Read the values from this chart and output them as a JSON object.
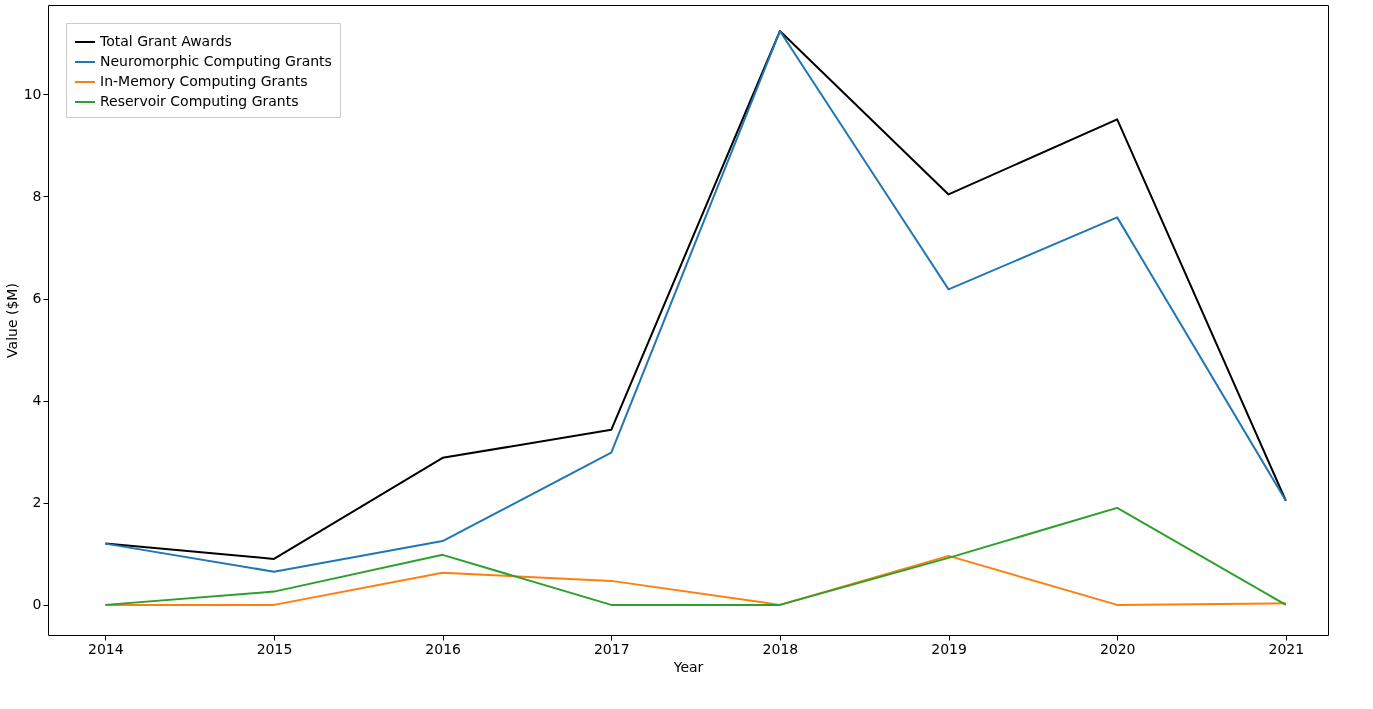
{
  "chart_data": {
    "type": "line",
    "xlabel": "Year",
    "ylabel": "Value ($M)",
    "x": [
      2014,
      2015,
      2016,
      2017,
      2018,
      2019,
      2020,
      2021
    ],
    "series": [
      {
        "name": "Total Grant Awards",
        "color": "#000000",
        "values": [
          1.2,
          0.9,
          2.88,
          3.43,
          11.24,
          8.04,
          9.51,
          2.04
        ]
      },
      {
        "name": "Neuromorphic Computing Grants",
        "color": "#1f77b4",
        "values": [
          1.2,
          0.65,
          1.25,
          2.98,
          11.24,
          6.18,
          7.59,
          2.04
        ]
      },
      {
        "name": "In-Memory Computing Grants",
        "color": "#ff7f0e",
        "values": [
          0,
          0,
          0.63,
          0.47,
          0,
          0.96,
          0,
          0.03
        ]
      },
      {
        "name": "Reservoir Computing Grants",
        "color": "#2ca02c",
        "values": [
          0,
          0.26,
          0.98,
          0,
          0,
          0.92,
          1.9,
          0
        ]
      }
    ],
    "xlim": [
      2013.66,
      2021.25
    ],
    "xticks": [
      2014,
      2015,
      2016,
      2017,
      2018,
      2019,
      2020,
      2021
    ],
    "ylim": [
      -0.59,
      11.75
    ],
    "yticks": [
      0,
      2,
      4,
      6,
      8,
      10
    ],
    "legend": "top left",
    "grid": false,
    "marker": "none",
    "line_style": "solid"
  }
}
